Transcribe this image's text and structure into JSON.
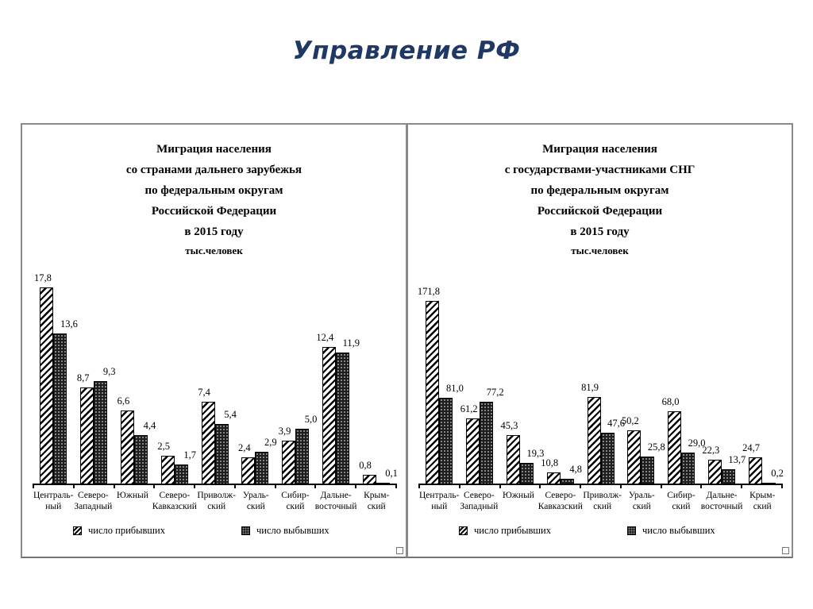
{
  "page": {
    "title": "Управление РФ",
    "title_color": "#1f3864",
    "background": "#ffffff"
  },
  "legend": {
    "arrivals_label": "число прибывших",
    "departures_label": "число выбывших"
  },
  "colors": {
    "bar_outline": "#000000",
    "hatch_stripe": "#000000",
    "dots_fill": "#1e1e1e",
    "panel_border": "#8a8a8a"
  },
  "chart_data": [
    {
      "type": "bar",
      "title_lines": [
        "Миграция населения",
        "со странами дальнего зарубежья",
        "по федеральным округам",
        "Российской Федерации",
        "в 2015 году"
      ],
      "unit_line": "тыс.человек",
      "categories": [
        "Центральный",
        "Северо-Западный",
        "Южный",
        "Северо-Кавказский",
        "Приволжский",
        "Уральский",
        "Сибирский",
        "Дальневосточный",
        "Крымский"
      ],
      "category_display_lines": [
        [
          "Централь-",
          "ный"
        ],
        [
          "Северо-",
          "Западный"
        ],
        [
          "Южный",
          ""
        ],
        [
          "Северо-",
          "Кавказский"
        ],
        [
          "Приволж-",
          "ский"
        ],
        [
          "Ураль-",
          "ский"
        ],
        [
          "Сибир-",
          "ский"
        ],
        [
          "Дальне-",
          "восточный"
        ],
        [
          "Крым-",
          "ский"
        ]
      ],
      "series": [
        {
          "name": "число прибывших",
          "pattern": "hatch",
          "values": [
            17.8,
            8.7,
            6.6,
            2.5,
            7.4,
            2.4,
            3.9,
            12.4,
            0.8
          ]
        },
        {
          "name": "число выбывших",
          "pattern": "dots",
          "values": [
            13.6,
            9.3,
            4.4,
            1.7,
            5.4,
            2.9,
            5.0,
            11.9,
            0.1
          ]
        }
      ],
      "xlabel": "",
      "ylabel": "",
      "ylim": [
        0,
        18
      ],
      "grid": false,
      "legend_position": "bottom",
      "decimal_separator": ","
    },
    {
      "type": "bar",
      "title_lines": [
        "Миграция населения",
        "с государствами-участниками СНГ",
        "по федеральным округам",
        "Российской Федерации",
        "в 2015 году"
      ],
      "unit_line": "тыс.человек",
      "categories": [
        "Центральный",
        "Северо-Западный",
        "Южный",
        "Северо-Кавказский",
        "Приволжский",
        "Уральский",
        "Сибирский",
        "Дальневосточный",
        "Крымский"
      ],
      "category_display_lines": [
        [
          "Централь-",
          "ный"
        ],
        [
          "Северо-",
          "Западный"
        ],
        [
          "Южный",
          ""
        ],
        [
          "Северо-",
          "Кавказский"
        ],
        [
          "Приволж-",
          "ский"
        ],
        [
          "Ураль-",
          "ский"
        ],
        [
          "Сибир-",
          "ский"
        ],
        [
          "Дальне-",
          "восточный"
        ],
        [
          "Крым-",
          "ский"
        ]
      ],
      "series": [
        {
          "name": "число прибывших",
          "pattern": "hatch",
          "values": [
            171.8,
            61.2,
            45.3,
            10.8,
            81.9,
            50.2,
            68.0,
            22.3,
            24.7
          ]
        },
        {
          "name": "число выбывших",
          "pattern": "dots",
          "values": [
            81.0,
            77.2,
            19.3,
            4.8,
            47.6,
            25.8,
            29.0,
            13.7,
            0.2
          ]
        }
      ],
      "xlabel": "",
      "ylabel": "",
      "ylim": [
        0,
        187
      ],
      "grid": false,
      "legend_position": "bottom",
      "decimal_separator": ","
    }
  ]
}
